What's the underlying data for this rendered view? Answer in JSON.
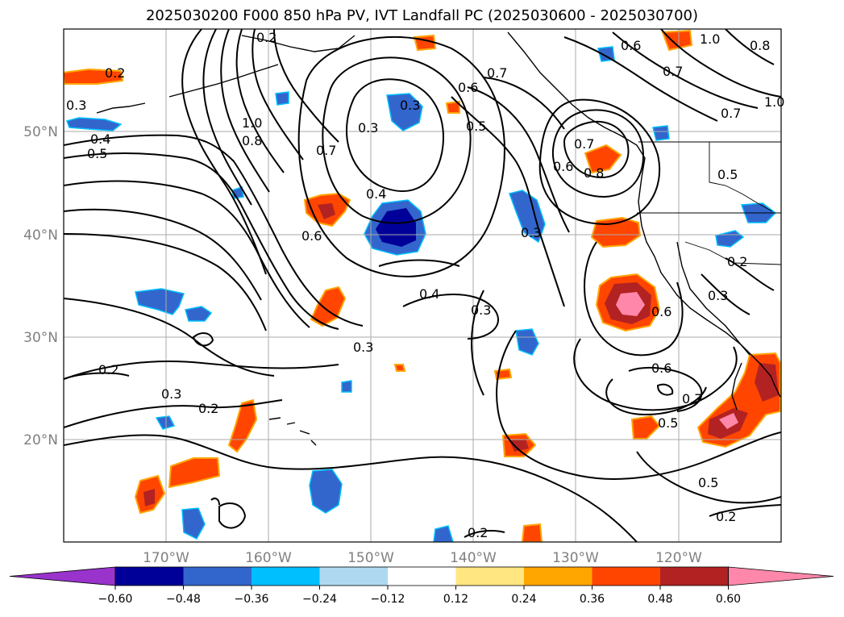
{
  "title": "2025030200 F000 850 hPa PV, IVT Landfall PC (2025030600 - 2025030700)",
  "lat_labels": [
    "50°N",
    "40°N",
    "30°N",
    "20°N"
  ],
  "lon_labels": [
    "170°W",
    "160°W",
    "150°W",
    "140°W",
    "130°W",
    "120°W"
  ],
  "contour_labels": [
    "1.0",
    "0.8",
    "0.7",
    "0.6",
    "0.5",
    "0.4",
    "0.3",
    "0.2",
    "0.2",
    "0.3",
    "0.4",
    "0.3",
    "0.7",
    "0.6",
    "0.5",
    "0.6",
    "0.7",
    "0.8",
    "0.7",
    "0.6",
    "0.3",
    "0.3",
    "0.6",
    "0.7",
    "0.5",
    "0.5",
    "0.2",
    "0.3",
    "0.2",
    "0.5",
    "0.2",
    "0.4",
    "0.6",
    "0.7",
    "0.8",
    "1.0",
    "1.0",
    "0.3",
    "0.2",
    "0.2",
    "0.3"
  ],
  "colorbar": {
    "ticks": [
      "−0.60",
      "−0.48",
      "−0.36",
      "−0.24",
      "−0.12",
      "0.12",
      "0.24",
      "0.36",
      "0.48",
      "0.60"
    ],
    "colors": [
      "#9933cc",
      "#000099",
      "#3366cc",
      "#00bfff",
      "#add8f0",
      "#ffffff",
      "#ffe680",
      "#ffa500",
      "#ff4500",
      "#b22222",
      "#ff88aa",
      "#ff88aa"
    ]
  },
  "colors": {
    "frame": "#000000",
    "grid": "#aaaaaa",
    "contour": "#000000",
    "coast": "#000000"
  }
}
